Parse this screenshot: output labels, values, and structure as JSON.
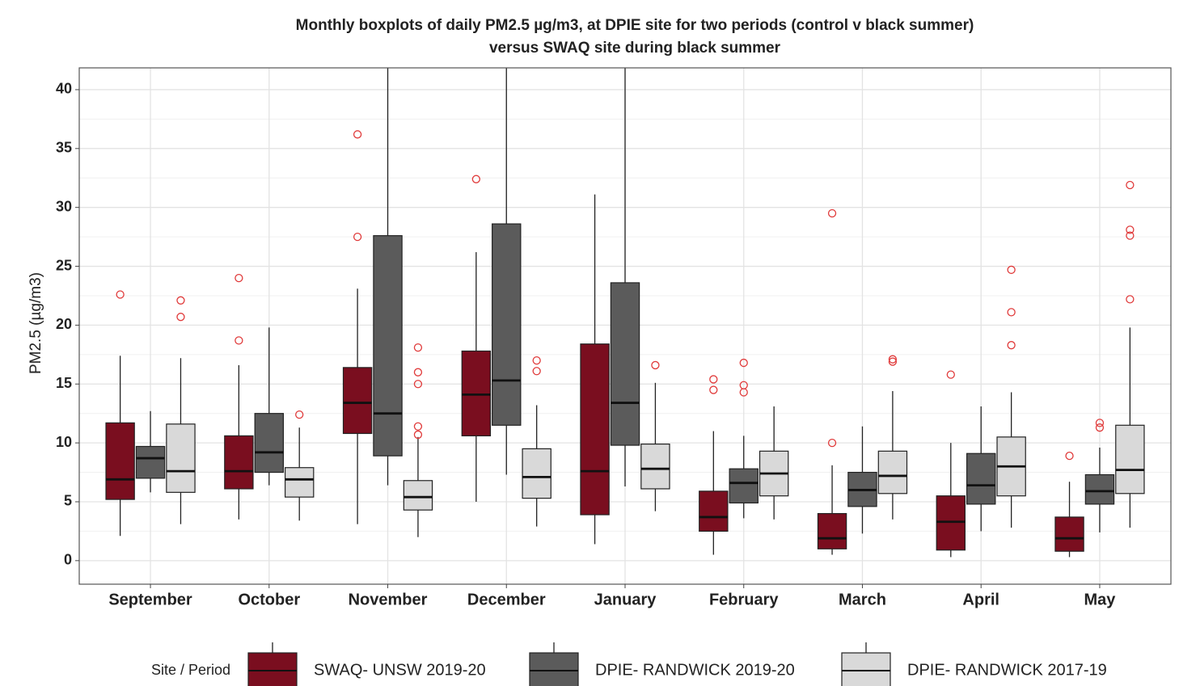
{
  "chart_data": {
    "type": "boxplot",
    "title": [
      "Monthly boxplots of daily PM2.5 µg/m3, at DPIE site for two periods (control v black summer)",
      "versus SWAQ site during black summer"
    ],
    "y_label": "PM2.5 (µg/m3)",
    "legend_title": "Site / Period",
    "legend_position": "bottom",
    "grid": true,
    "outlier_color": "#e03a3a",
    "categories": [
      "September",
      "October",
      "November",
      "December",
      "January",
      "February",
      "March",
      "April",
      "May"
    ],
    "ylim": [
      -2,
      41.85
    ],
    "yticks": [
      0,
      5,
      10,
      15,
      20,
      25,
      30,
      35,
      40
    ],
    "series": [
      {
        "name": "SWAQ- UNSW 2019-20",
        "color": "#7a0e1f",
        "boxes": [
          {
            "low": 2.1,
            "q1": 5.2,
            "median": 6.9,
            "q3": 11.7,
            "high": 17.4,
            "outliers": [
              22.6
            ]
          },
          {
            "low": 3.5,
            "q1": 6.1,
            "median": 7.6,
            "q3": 10.6,
            "high": 16.6,
            "outliers": [
              18.7,
              24.0
            ]
          },
          {
            "low": 3.1,
            "q1": 10.8,
            "median": 13.4,
            "q3": 16.4,
            "high": 23.1,
            "outliers": [
              27.5,
              36.2
            ]
          },
          {
            "low": 5.0,
            "q1": 10.6,
            "median": 14.1,
            "q3": 17.8,
            "high": 26.2,
            "outliers": [
              32.4
            ]
          },
          {
            "low": 1.4,
            "q1": 3.9,
            "median": 7.6,
            "q3": 18.4,
            "high": 31.1,
            "outliers": []
          },
          {
            "low": 0.5,
            "q1": 2.5,
            "median": 3.7,
            "q3": 5.9,
            "high": 11.0,
            "outliers": [
              14.5,
              15.4
            ]
          },
          {
            "low": 0.5,
            "q1": 1.0,
            "median": 1.9,
            "q3": 4.0,
            "high": 8.1,
            "outliers": [
              10.0,
              29.5
            ]
          },
          {
            "low": 0.3,
            "q1": 0.9,
            "median": 3.3,
            "q3": 5.5,
            "high": 10.0,
            "outliers": [
              15.8
            ]
          },
          {
            "low": 0.3,
            "q1": 0.8,
            "median": 1.9,
            "q3": 3.7,
            "high": 6.7,
            "outliers": [
              8.9
            ]
          }
        ]
      },
      {
        "name": "DPIE- RANDWICK 2019-20",
        "color": "#5b5b5b",
        "boxes": [
          {
            "low": 5.8,
            "q1": 7.0,
            "median": 8.7,
            "q3": 9.7,
            "high": 12.7,
            "outliers": []
          },
          {
            "low": 6.4,
            "q1": 7.5,
            "median": 9.2,
            "q3": 12.5,
            "high": 19.8,
            "outliers": []
          },
          {
            "low": 6.4,
            "q1": 8.9,
            "median": 12.5,
            "q3": 27.6,
            "high": 45,
            "outliers": []
          },
          {
            "low": 7.3,
            "q1": 11.5,
            "median": 15.3,
            "q3": 28.6,
            "high": 45,
            "outliers": []
          },
          {
            "low": 6.3,
            "q1": 9.8,
            "median": 13.4,
            "q3": 23.6,
            "high": 45,
            "outliers": []
          },
          {
            "low": 3.6,
            "q1": 4.9,
            "median": 6.6,
            "q3": 7.8,
            "high": 10.6,
            "outliers": [
              14.3,
              14.9,
              16.8
            ]
          },
          {
            "low": 2.3,
            "q1": 4.6,
            "median": 6.0,
            "q3": 7.5,
            "high": 11.4,
            "outliers": []
          },
          {
            "low": 2.5,
            "q1": 4.8,
            "median": 6.4,
            "q3": 9.1,
            "high": 13.1,
            "outliers": []
          },
          {
            "low": 2.4,
            "q1": 4.8,
            "median": 5.9,
            "q3": 7.3,
            "high": 9.6,
            "outliers": [
              11.3,
              11.7
            ]
          }
        ]
      },
      {
        "name": "DPIE- RANDWICK 2017-19",
        "color": "#d9d9d9",
        "boxes": [
          {
            "low": 3.1,
            "q1": 5.8,
            "median": 7.6,
            "q3": 11.6,
            "high": 17.2,
            "outliers": [
              20.7,
              22.1
            ]
          },
          {
            "low": 3.4,
            "q1": 5.4,
            "median": 6.9,
            "q3": 7.9,
            "high": 11.3,
            "outliers": [
              12.4
            ]
          },
          {
            "low": 2.0,
            "q1": 4.3,
            "median": 5.4,
            "q3": 6.8,
            "high": 10.5,
            "outliers": [
              10.7,
              11.4,
              15.0,
              16.0,
              18.1
            ]
          },
          {
            "low": 2.9,
            "q1": 5.3,
            "median": 7.1,
            "q3": 9.5,
            "high": 13.2,
            "outliers": [
              16.1,
              17.0
            ]
          },
          {
            "low": 4.2,
            "q1": 6.1,
            "median": 7.8,
            "q3": 9.9,
            "high": 15.1,
            "outliers": [
              16.6
            ]
          },
          {
            "low": 3.5,
            "q1": 5.5,
            "median": 7.4,
            "q3": 9.3,
            "high": 13.1,
            "outliers": []
          },
          {
            "low": 3.5,
            "q1": 5.7,
            "median": 7.2,
            "q3": 9.3,
            "high": 14.4,
            "outliers": [
              16.9,
              17.1
            ]
          },
          {
            "low": 2.8,
            "q1": 5.5,
            "median": 8.0,
            "q3": 10.5,
            "high": 14.3,
            "outliers": [
              18.3,
              21.1,
              24.7
            ]
          },
          {
            "low": 2.8,
            "q1": 5.7,
            "median": 7.7,
            "q3": 11.5,
            "high": 19.8,
            "outliers": [
              22.2,
              27.6,
              28.1,
              31.9
            ]
          }
        ]
      }
    ]
  }
}
